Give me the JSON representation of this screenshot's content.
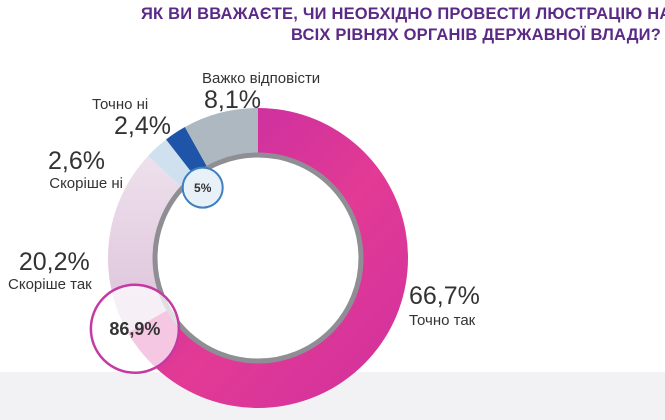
{
  "title_lines": [
    "ЯК ВИ ВВАЖАЄТЕ, ЧИ НЕОБХІДНО ПРОВЕСТИ ЛЮСТРАЦІЮ НА",
    "ВСІХ РІВНЯХ ОРГАНІВ ДЕРЖАВНОЇ ВЛАДИ?"
  ],
  "chart_data": {
    "type": "pie",
    "title": "ЯК ВИ ВВАЖАЄТЕ, ЧИ НЕОБХІДНО ПРОВЕСТИ ЛЮСТРАЦІЮ НА ВСІХ РІВНЯХ ОРГАНІВ ДЕРЖАВНОЇ ВЛАДИ?",
    "style": "donut",
    "slices": [
      {
        "label": "Точно так",
        "value": 66.7,
        "value_text": "66,7%",
        "color": "#d6359f"
      },
      {
        "label": "Скоріше так",
        "value": 20.2,
        "value_text": "20,2%",
        "color": "#e8d3e6"
      },
      {
        "label": "Скоріше ні",
        "value": 2.6,
        "value_text": "2,6%",
        "color": "#cfe1ee"
      },
      {
        "label": "Точно ні",
        "value": 2.4,
        "value_text": "2,4%",
        "color": "#1f55a8"
      },
      {
        "label": "Важко відповісти",
        "value": 8.1,
        "value_text": "8,1%",
        "color": "#aeb8c1"
      }
    ],
    "group_callouts": [
      {
        "text": "86,9%",
        "value": 86.9,
        "members": [
          "Точно так",
          "Скоріше так"
        ]
      },
      {
        "text": "5%",
        "value": 5,
        "members": [
          "Скоріше ні",
          "Точно ні"
        ]
      }
    ]
  }
}
